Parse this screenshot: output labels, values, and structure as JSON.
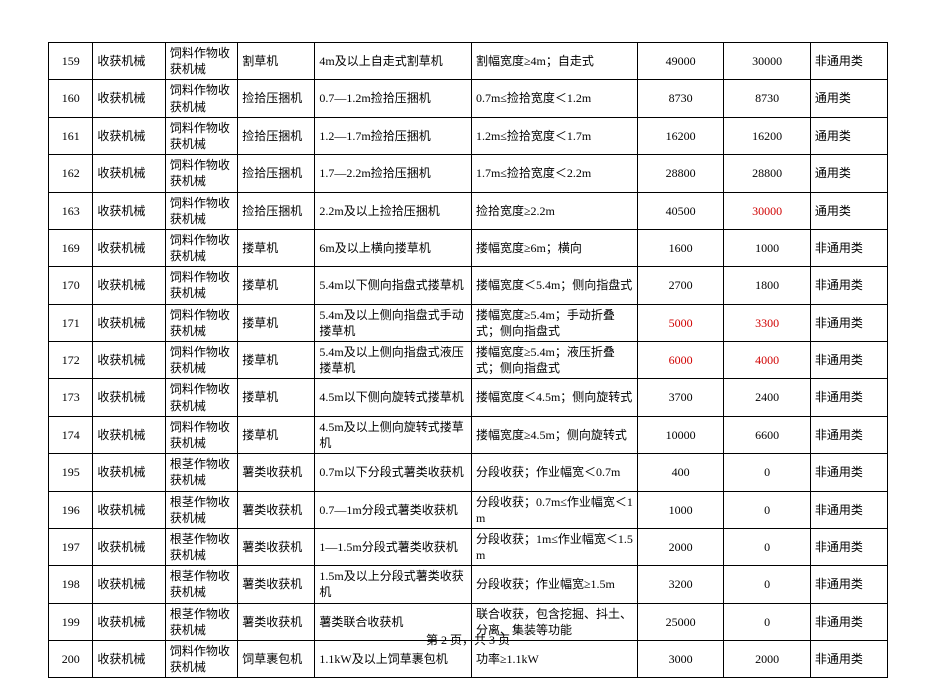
{
  "footer": "第 2 页，共 3 页",
  "columns": [
    "idx",
    "cat1",
    "cat2",
    "cat3",
    "desc",
    "spec",
    "v1",
    "v2",
    "type"
  ],
  "column_widths_class": [
    "c-idx",
    "c-cat1",
    "c-cat2",
    "c-cat3",
    "c-desc",
    "c-spec",
    "c-v1",
    "c-v2",
    "c-type"
  ],
  "red_cells": {
    "4": [
      "v2"
    ],
    "7": [
      "v1",
      "v2"
    ],
    "8": [
      "v1",
      "v2"
    ]
  },
  "rows": [
    {
      "idx": "159",
      "cat1": "收获机械",
      "cat2": "饲料作物收获机械",
      "cat3": "割草机",
      "desc": "4m及以上自走式割草机",
      "spec": "割幅宽度≥4m；自走式",
      "v1": "49000",
      "v2": "30000",
      "type": "非通用类"
    },
    {
      "idx": "160",
      "cat1": "收获机械",
      "cat2": "饲料作物收获机械",
      "cat3": "捡拾压捆机",
      "desc": "0.7—1.2m捡拾压捆机",
      "spec": "0.7m≤捡拾宽度＜1.2m",
      "v1": "8730",
      "v2": "8730",
      "type": "通用类"
    },
    {
      "idx": "161",
      "cat1": "收获机械",
      "cat2": "饲料作物收获机械",
      "cat3": "捡拾压捆机",
      "desc": "1.2—1.7m捡拾压捆机",
      "spec": "1.2m≤捡拾宽度＜1.7m",
      "v1": "16200",
      "v2": "16200",
      "type": "通用类"
    },
    {
      "idx": "162",
      "cat1": "收获机械",
      "cat2": "饲料作物收获机械",
      "cat3": "捡拾压捆机",
      "desc": "1.7—2.2m捡拾压捆机",
      "spec": "1.7m≤捡拾宽度＜2.2m",
      "v1": "28800",
      "v2": "28800",
      "type": "通用类"
    },
    {
      "idx": "163",
      "cat1": "收获机械",
      "cat2": "饲料作物收获机械",
      "cat3": "捡拾压捆机",
      "desc": "2.2m及以上捡拾压捆机",
      "spec": "捡拾宽度≥2.2m",
      "v1": "40500",
      "v2": "30000",
      "type": "通用类"
    },
    {
      "idx": "169",
      "cat1": "收获机械",
      "cat2": "饲料作物收获机械",
      "cat3": "搂草机",
      "desc": "6m及以上横向搂草机",
      "spec": "搂幅宽度≥6m；横向",
      "v1": "1600",
      "v2": "1000",
      "type": "非通用类"
    },
    {
      "idx": "170",
      "cat1": "收获机械",
      "cat2": "饲料作物收获机械",
      "cat3": "搂草机",
      "desc": "5.4m以下侧向指盘式搂草机",
      "spec": "搂幅宽度＜5.4m；侧向指盘式",
      "v1": "2700",
      "v2": "1800",
      "type": "非通用类"
    },
    {
      "idx": "171",
      "cat1": "收获机械",
      "cat2": "饲料作物收获机械",
      "cat3": "搂草机",
      "desc": "5.4m及以上侧向指盘式手动搂草机",
      "spec": "搂幅宽度≥5.4m；手动折叠式；侧向指盘式",
      "v1": "5000",
      "v2": "3300",
      "type": "非通用类"
    },
    {
      "idx": "172",
      "cat1": "收获机械",
      "cat2": "饲料作物收获机械",
      "cat3": "搂草机",
      "desc": "5.4m及以上侧向指盘式液压搂草机",
      "spec": "搂幅宽度≥5.4m；液压折叠式；侧向指盘式",
      "v1": "6000",
      "v2": "4000",
      "type": "非通用类"
    },
    {
      "idx": "173",
      "cat1": "收获机械",
      "cat2": "饲料作物收获机械",
      "cat3": "搂草机",
      "desc": "4.5m以下侧向旋转式搂草机",
      "spec": "搂幅宽度＜4.5m；侧向旋转式",
      "v1": "3700",
      "v2": "2400",
      "type": "非通用类"
    },
    {
      "idx": "174",
      "cat1": "收获机械",
      "cat2": "饲料作物收获机械",
      "cat3": "搂草机",
      "desc": "4.5m及以上侧向旋转式搂草机",
      "spec": "搂幅宽度≥4.5m；侧向旋转式",
      "v1": "10000",
      "v2": "6600",
      "type": "非通用类"
    },
    {
      "idx": "195",
      "cat1": "收获机械",
      "cat2": "根茎作物收获机械",
      "cat3": "薯类收获机",
      "desc": "0.7m以下分段式薯类收获机",
      "spec": "分段收获；作业幅宽＜0.7m",
      "v1": "400",
      "v2": "0",
      "type": "非通用类"
    },
    {
      "idx": "196",
      "cat1": "收获机械",
      "cat2": "根茎作物收获机械",
      "cat3": "薯类收获机",
      "desc": "0.7—1m分段式薯类收获机",
      "spec": "分段收获；0.7m≤作业幅宽＜1m",
      "v1": "1000",
      "v2": "0",
      "type": "非通用类"
    },
    {
      "idx": "197",
      "cat1": "收获机械",
      "cat2": "根茎作物收获机械",
      "cat3": "薯类收获机",
      "desc": "1—1.5m分段式薯类收获机",
      "spec": "分段收获；1m≤作业幅宽＜1.5m",
      "v1": "2000",
      "v2": "0",
      "type": "非通用类"
    },
    {
      "idx": "198",
      "cat1": "收获机械",
      "cat2": "根茎作物收获机械",
      "cat3": "薯类收获机",
      "desc": "1.5m及以上分段式薯类收获机",
      "spec": "分段收获；作业幅宽≥1.5m",
      "v1": "3200",
      "v2": "0",
      "type": "非通用类"
    },
    {
      "idx": "199",
      "cat1": "收获机械",
      "cat2": "根茎作物收获机械",
      "cat3": "薯类收获机",
      "desc": "薯类联合收获机",
      "spec": "联合收获，包含挖掘、抖土、分离、集装等功能",
      "v1": "25000",
      "v2": "0",
      "type": "非通用类"
    },
    {
      "idx": "200",
      "cat1": "收获机械",
      "cat2": "饲料作物收获机械",
      "cat3": "饲草裹包机",
      "desc": "1.1kW及以上饲草裹包机",
      "spec": "功率≥1.1kW",
      "v1": "3000",
      "v2": "2000",
      "type": "非通用类"
    }
  ]
}
